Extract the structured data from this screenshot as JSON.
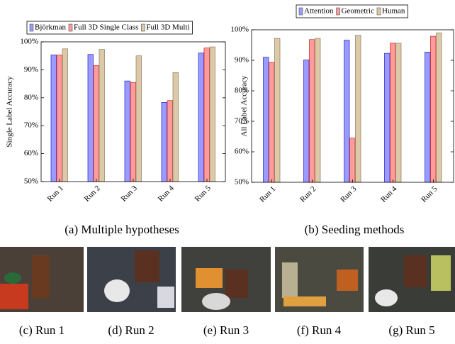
{
  "chart_data": [
    {
      "type": "bar",
      "caption": "(a) Multiple hypotheses",
      "ylabel": "Single Label Accuracy",
      "categories": [
        "Run 1",
        "Run 2",
        "Run 3",
        "Run 4",
        "Run 5"
      ],
      "series": [
        {
          "name": "Björkman",
          "color": "#9b9bff",
          "values": [
            95.3,
            95.5,
            86,
            78.3,
            96
          ]
        },
        {
          "name": "Full 3D Single Class",
          "color": "#ff9b9b",
          "values": [
            95.3,
            91.5,
            85.5,
            79,
            97.8
          ]
        },
        {
          "name": "Full 3D Multi",
          "color": "#dcc9a8",
          "values": [
            97.5,
            97.3,
            95,
            89,
            98.2
          ]
        }
      ],
      "ylim": [
        50,
        100
      ],
      "yticks": [
        {
          "value": 50,
          "label": "50%"
        },
        {
          "value": 60,
          "label": "60%"
        },
        {
          "value": 70,
          "label": "70%"
        },
        {
          "value": 80,
          "label": "80%"
        },
        {
          "value": 90,
          "label": "90%"
        },
        {
          "value": 100,
          "label": "100%"
        }
      ]
    },
    {
      "type": "bar",
      "caption": "(b) Seeding methods",
      "ylabel": "All Label Accuracy",
      "categories": [
        "Run 1",
        "Run 2",
        "Run 3",
        "Run 4",
        "Run 5"
      ],
      "series": [
        {
          "name": "Attention",
          "color": "#9b9bff",
          "values": [
            91,
            90.1,
            96.6,
            92.3,
            92.7
          ]
        },
        {
          "name": "Geometric",
          "color": "#ff9b9b",
          "values": [
            89.3,
            96.8,
            64.5,
            95.6,
            97.9
          ]
        },
        {
          "name": "Human",
          "color": "#dcc9a8",
          "values": [
            97.2,
            97.2,
            98.2,
            95.6,
            99
          ]
        }
      ],
      "ylim": [
        50,
        100
      ],
      "yticks": [
        {
          "value": 50,
          "label": "50%"
        },
        {
          "value": 60,
          "label": "60%"
        },
        {
          "value": 70,
          "label": "70%"
        },
        {
          "value": 80,
          "label": "80%"
        },
        {
          "value": 90,
          "label": "90%"
        },
        {
          "value": 100,
          "label": "100%"
        }
      ]
    }
  ],
  "subfigures": [
    {
      "caption": "(c) Run 1"
    },
    {
      "caption": "(d) Run 2"
    },
    {
      "caption": "(e) Run 3"
    },
    {
      "caption": "(f) Run 4"
    },
    {
      "caption": "(g) Run 5"
    }
  ]
}
